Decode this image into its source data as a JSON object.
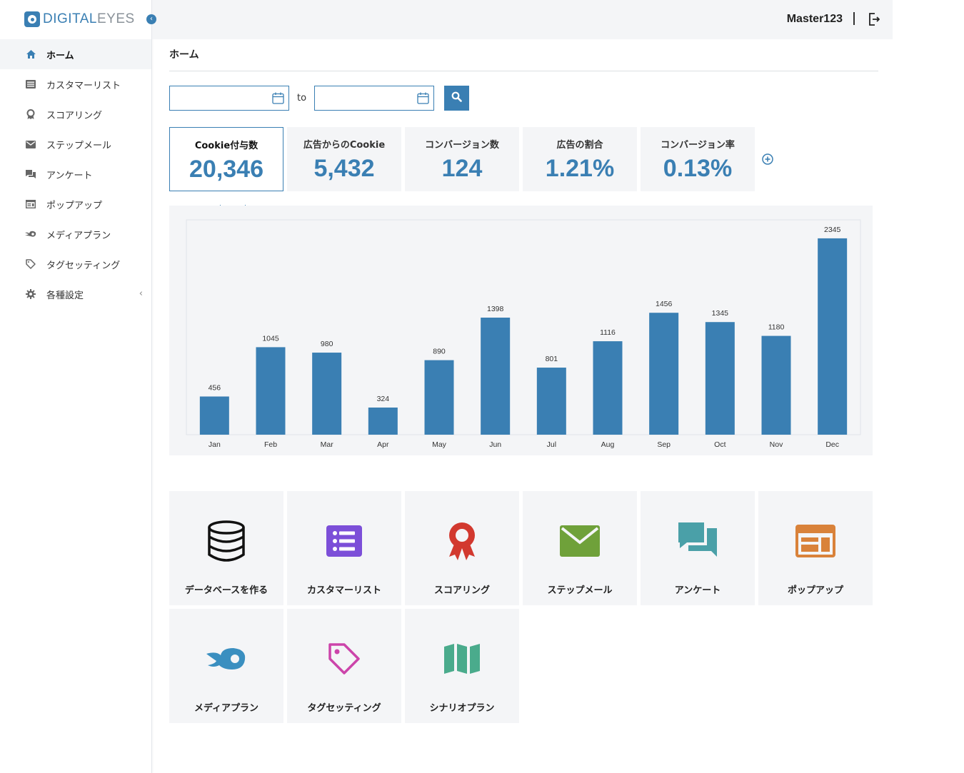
{
  "brand": {
    "part1": "DIGITAL",
    "part2": "EYES"
  },
  "sidebar": {
    "items": [
      {
        "label": "ホーム"
      },
      {
        "label": "カスタマーリスト"
      },
      {
        "label": "スコアリング"
      },
      {
        "label": "ステップメール"
      },
      {
        "label": "アンケート"
      },
      {
        "label": "ポップアップ"
      },
      {
        "label": "メディアプラン"
      },
      {
        "label": "タグセッティング"
      },
      {
        "label": "各種設定"
      }
    ]
  },
  "header": {
    "user": "Master123"
  },
  "page": {
    "title": "ホーム"
  },
  "filter": {
    "to_label": "to",
    "from_value": "",
    "to_value": ""
  },
  "stats": [
    {
      "label": "Cookie付与数",
      "value": "20,346"
    },
    {
      "label": "広告からのCookie",
      "value": "5,432"
    },
    {
      "label": "コンバージョン数",
      "value": "124"
    },
    {
      "label": "広告の割合",
      "value": "1.21%"
    },
    {
      "label": "コンバージョン率",
      "value": "0.13%"
    }
  ],
  "chart_data": {
    "type": "bar",
    "title": "",
    "xlabel": "",
    "ylabel": "",
    "categories": [
      "Jan",
      "Feb",
      "Mar",
      "Apr",
      "May",
      "Jun",
      "Jul",
      "Aug",
      "Sep",
      "Oct",
      "Nov",
      "Dec"
    ],
    "values": [
      456,
      1045,
      980,
      324,
      890,
      1398,
      801,
      1116,
      1456,
      1345,
      1180,
      2345
    ],
    "ylim": [
      0,
      2600
    ],
    "color": "#3a7fb3"
  },
  "tiles": [
    {
      "label": "データベースを作る",
      "icon": "database-icon",
      "color": "#111111"
    },
    {
      "label": "カスタマーリスト",
      "icon": "list-icon",
      "color": "#7c4fd8"
    },
    {
      "label": "スコアリング",
      "icon": "award-icon",
      "color": "#d2392f"
    },
    {
      "label": "ステップメール",
      "icon": "mail-icon",
      "color": "#6fa13a"
    },
    {
      "label": "アンケート",
      "icon": "chat-icon",
      "color": "#4aa0a8"
    },
    {
      "label": "ポップアップ",
      "icon": "popup-icon",
      "color": "#d9823a"
    },
    {
      "label": "メディアプラン",
      "icon": "media-icon",
      "color": "#3a8fc0"
    },
    {
      "label": "タグセッティング",
      "icon": "tag-icon",
      "color": "#cc44aa"
    },
    {
      "label": "シナリオプラン",
      "icon": "map-icon",
      "color": "#4aab8c"
    }
  ]
}
